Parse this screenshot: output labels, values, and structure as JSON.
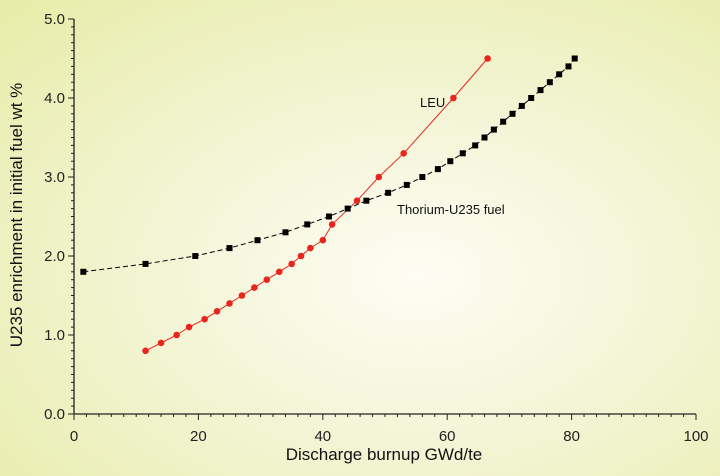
{
  "chart_data": {
    "type": "line",
    "title": "",
    "xlabel": "Discharge burnup     GWd/te",
    "ylabel": "U235 enrichment in initial fuel     wt %",
    "xlim": [
      0,
      100
    ],
    "ylim": [
      0.0,
      5.0
    ],
    "x_ticks": [
      "0",
      "20",
      "40",
      "60",
      "80",
      "100"
    ],
    "y_ticks": [
      "0.0",
      "1.0",
      "2.0",
      "3.0",
      "4.0",
      "5.0"
    ],
    "grid": false,
    "series": [
      {
        "name": "LEU",
        "color": "#e8261e",
        "marker": "circle",
        "x": [
          11.5,
          14,
          16.5,
          18.5,
          21,
          23,
          25,
          27,
          29,
          31,
          33,
          35,
          36.5,
          38,
          40,
          41.5,
          45.5,
          49,
          53,
          61,
          66.5
        ],
        "y": [
          0.8,
          0.9,
          1.0,
          1.1,
          1.2,
          1.3,
          1.4,
          1.5,
          1.6,
          1.7,
          1.8,
          1.9,
          2.0,
          2.1,
          2.2,
          2.4,
          2.7,
          3.0,
          3.3,
          4.0,
          4.5
        ]
      },
      {
        "name": "Thorium-U235 fuel",
        "color": "#000000",
        "marker": "square",
        "x": [
          1.5,
          11.5,
          19.5,
          25,
          29.5,
          34,
          37.5,
          41,
          44,
          47,
          50.5,
          53.5,
          56,
          58.5,
          60.5,
          62.5,
          64.5,
          66,
          67.5,
          69,
          70.5,
          72,
          73.5,
          75,
          76.5,
          78,
          79.5,
          80.5
        ],
        "y": [
          1.8,
          1.9,
          2.0,
          2.1,
          2.2,
          2.3,
          2.4,
          2.5,
          2.6,
          2.7,
          2.8,
          2.9,
          3.0,
          3.1,
          3.2,
          3.3,
          3.4,
          3.5,
          3.6,
          3.7,
          3.8,
          3.9,
          4.0,
          4.1,
          4.2,
          4.3,
          4.4,
          4.5
        ]
      }
    ],
    "annotations": [
      {
        "text": "LEU",
        "series": "LEU"
      },
      {
        "text": "Thorium-U235 fuel",
        "series": "Thorium-U235 fuel"
      }
    ]
  }
}
